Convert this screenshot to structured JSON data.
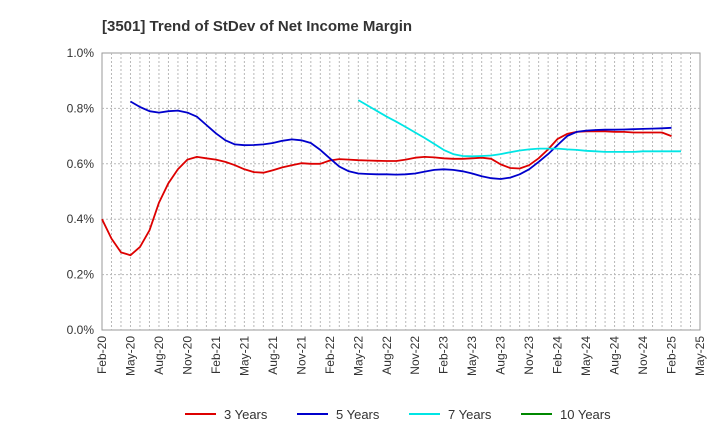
{
  "chart_data": {
    "type": "line",
    "title": "[3501]  Trend of StDev of Net Income Margin",
    "xlabel": "",
    "ylabel": "",
    "ylim": [
      0,
      1.0
    ],
    "y_ticks": [
      0.0,
      0.2,
      0.4,
      0.6,
      0.8,
      1.0
    ],
    "y_tick_labels": [
      "0.0%",
      "0.2%",
      "0.4%",
      "0.6%",
      "0.8%",
      "1.0%"
    ],
    "x_tick_labels": [
      "Feb-20",
      "May-20",
      "Aug-20",
      "Nov-20",
      "Feb-21",
      "May-21",
      "Aug-21",
      "Nov-21",
      "Feb-22",
      "May-22",
      "Aug-22",
      "Nov-22",
      "Feb-23",
      "May-23",
      "Aug-23",
      "Nov-23",
      "Feb-24",
      "May-24",
      "Aug-24",
      "Nov-24",
      "Feb-25",
      "May-25"
    ],
    "x_range_months": [
      0,
      63
    ],
    "grid": true,
    "legend_position": "bottom",
    "series": [
      {
        "name": "3 Years",
        "color": "#dd0000",
        "start_month": 0,
        "values": [
          0.4,
          0.33,
          0.28,
          0.27,
          0.3,
          0.36,
          0.46,
          0.53,
          0.58,
          0.615,
          0.625,
          0.62,
          0.615,
          0.607,
          0.595,
          0.58,
          0.57,
          0.568,
          0.577,
          0.587,
          0.595,
          0.602,
          0.6,
          0.6,
          0.612,
          0.617,
          0.615,
          0.613,
          0.612,
          0.611,
          0.61,
          0.61,
          0.615,
          0.622,
          0.625,
          0.623,
          0.62,
          0.618,
          0.618,
          0.62,
          0.622,
          0.618,
          0.598,
          0.585,
          0.583,
          0.595,
          0.62,
          0.652,
          0.69,
          0.708,
          0.715,
          0.717,
          0.717,
          0.717,
          0.715,
          0.715,
          0.713,
          0.713,
          0.713,
          0.713,
          0.7
        ]
      },
      {
        "name": "5 Years",
        "color": "#0000cc",
        "start_month": 3,
        "values": [
          0.825,
          0.805,
          0.79,
          0.785,
          0.79,
          0.792,
          0.785,
          0.77,
          0.74,
          0.71,
          0.685,
          0.67,
          0.667,
          0.668,
          0.67,
          0.675,
          0.683,
          0.688,
          0.685,
          0.675,
          0.65,
          0.62,
          0.59,
          0.573,
          0.565,
          0.563,
          0.562,
          0.562,
          0.561,
          0.562,
          0.565,
          0.572,
          0.578,
          0.58,
          0.578,
          0.573,
          0.565,
          0.555,
          0.548,
          0.545,
          0.55,
          0.562,
          0.58,
          0.607,
          0.635,
          0.668,
          0.7,
          0.715,
          0.72,
          0.722,
          0.723,
          0.723,
          0.724,
          0.725,
          0.726,
          0.727,
          0.728,
          0.73
        ]
      },
      {
        "name": "7 Years",
        "color": "#00e5e5",
        "start_month": 27,
        "values": [
          0.83,
          0.81,
          0.79,
          0.77,
          0.752,
          0.733,
          0.713,
          0.693,
          0.672,
          0.65,
          0.635,
          0.628,
          0.627,
          0.628,
          0.63,
          0.635,
          0.642,
          0.648,
          0.652,
          0.655,
          0.655,
          0.655,
          0.652,
          0.65,
          0.647,
          0.645,
          0.643,
          0.643,
          0.643,
          0.643,
          0.645,
          0.645,
          0.645,
          0.645,
          0.645
        ]
      },
      {
        "name": "10 Years",
        "color": "#008800",
        "start_month": 0,
        "values": []
      }
    ]
  }
}
